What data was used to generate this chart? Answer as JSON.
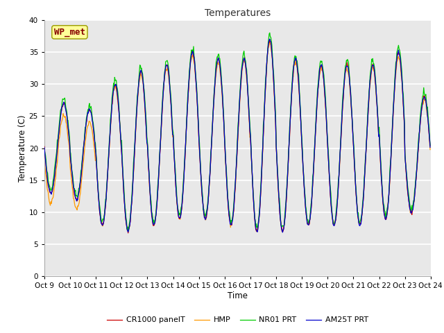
{
  "title": "Temperatures",
  "xlabel": "Time",
  "ylabel": "Temperature (C)",
  "annotation": "WP_met",
  "ylim": [
    0,
    40
  ],
  "yticks": [
    0,
    5,
    10,
    15,
    20,
    25,
    30,
    35,
    40
  ],
  "xtick_labels": [
    "Oct 9",
    "Oct 10",
    "Oct 11",
    "Oct 12",
    "Oct 13",
    "Oct 14",
    "Oct 15",
    "Oct 16",
    "Oct 17",
    "Oct 18",
    "Oct 19",
    "Oct 20",
    "Oct 21",
    "Oct 22",
    "Oct 23",
    "Oct 24"
  ],
  "series": [
    {
      "label": "CR1000 panelT",
      "color": "#cc0000"
    },
    {
      "label": "HMP",
      "color": "#ff9900"
    },
    {
      "label": "NR01 PRT",
      "color": "#00cc00"
    },
    {
      "label": "AM25T PRT",
      "color": "#0000cc"
    }
  ],
  "bg_color": "#e8e8e8",
  "grid_color": "#ffffff",
  "annotation_box_color": "#ffff99",
  "annotation_text_color": "#880000",
  "annotation_border_color": "#999900",
  "day_mins": [
    13,
    12,
    8,
    7,
    8,
    9,
    9,
    8,
    7,
    7,
    8,
    8,
    8,
    9,
    10
  ],
  "day_maxs": [
    27,
    26,
    30,
    32,
    33,
    35,
    34,
    34,
    37,
    34,
    33,
    33,
    33,
    35,
    28
  ],
  "samples_per_day": 48,
  "peak_hour": 14,
  "trough_hour": 6
}
